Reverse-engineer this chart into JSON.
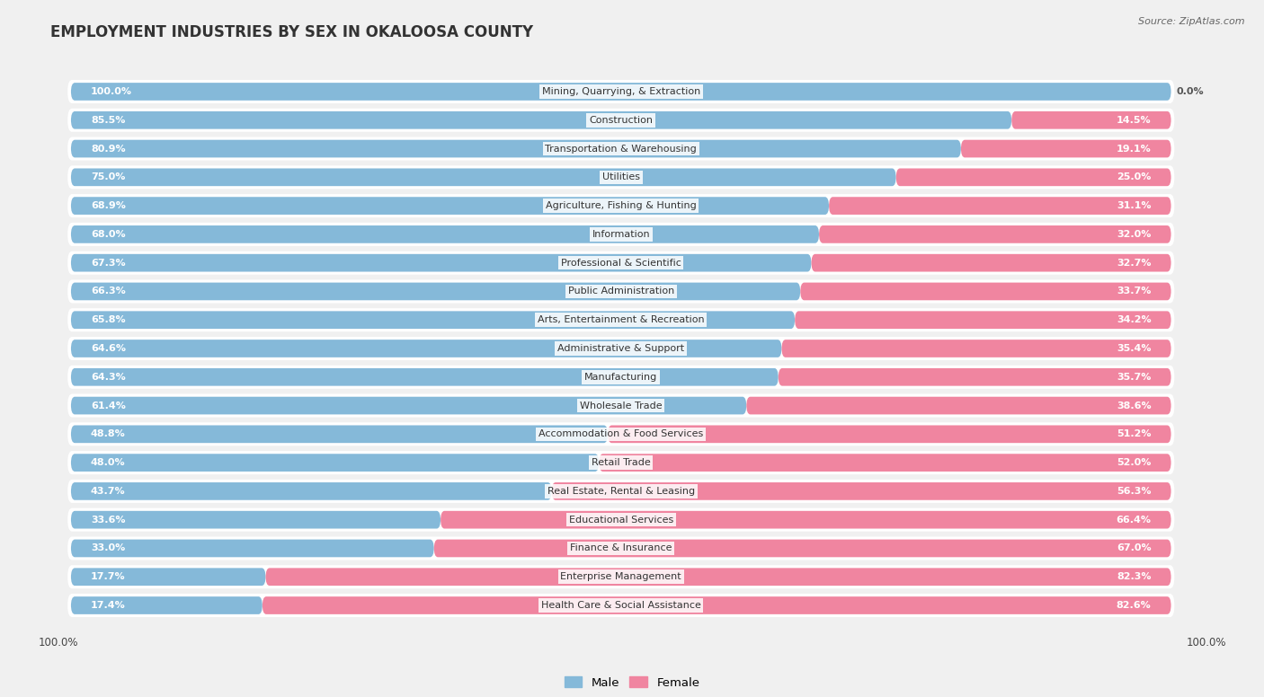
{
  "title": "EMPLOYMENT INDUSTRIES BY SEX IN OKALOOSA COUNTY",
  "source": "Source: ZipAtlas.com",
  "categories": [
    "Mining, Quarrying, & Extraction",
    "Construction",
    "Transportation & Warehousing",
    "Utilities",
    "Agriculture, Fishing & Hunting",
    "Information",
    "Professional & Scientific",
    "Public Administration",
    "Arts, Entertainment & Recreation",
    "Administrative & Support",
    "Manufacturing",
    "Wholesale Trade",
    "Accommodation & Food Services",
    "Retail Trade",
    "Real Estate, Rental & Leasing",
    "Educational Services",
    "Finance & Insurance",
    "Enterprise Management",
    "Health Care & Social Assistance"
  ],
  "male_pct": [
    100.0,
    85.5,
    80.9,
    75.0,
    68.9,
    68.0,
    67.3,
    66.3,
    65.8,
    64.6,
    64.3,
    61.4,
    48.8,
    48.0,
    43.7,
    33.6,
    33.0,
    17.7,
    17.4
  ],
  "female_pct": [
    0.0,
    14.5,
    19.1,
    25.0,
    31.1,
    32.0,
    32.7,
    33.7,
    34.2,
    35.4,
    35.7,
    38.6,
    51.2,
    52.0,
    56.3,
    66.4,
    67.0,
    82.3,
    82.6
  ],
  "male_color": "#85b9d9",
  "female_color": "#f085a0",
  "bg_color": "#f0f0f0",
  "title_fontsize": 12,
  "bar_height": 0.62,
  "label_fontsize": 8.0,
  "cat_fontsize": 8.0
}
